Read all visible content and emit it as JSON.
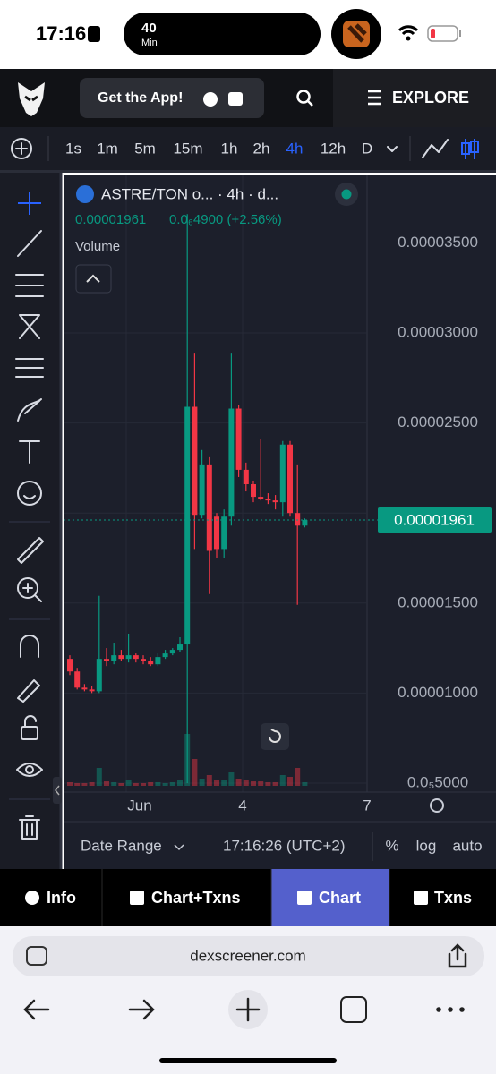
{
  "status_bar": {
    "time": "17:16",
    "timer_value": "40",
    "timer_unit": "Min"
  },
  "header": {
    "app_button": "Get the App!",
    "explore": "EXPLORE"
  },
  "timeframes": {
    "items": [
      "1s",
      "1m",
      "5m",
      "15m",
      "1h",
      "2h",
      "4h",
      "12h",
      "D"
    ],
    "active_index": 6
  },
  "chart": {
    "type": "candlestick",
    "title": "ASTRE/TON o... · 4h · d...",
    "last_close_label": "0.00001961",
    "change_label": "0.0₆4900 (+2.56%)",
    "indicator": "Volume",
    "up_color": "#089981",
    "down_color": "#f23645",
    "open": [
      1.19e-05,
      1.12e-05,
      1.03e-05,
      1.02e-05,
      1.01e-05,
      1.19e-05,
      1.18e-05,
      1.21e-05,
      1.19e-05,
      1.21e-05,
      1.19e-05,
      1.18e-05,
      1.16e-05,
      1.2e-05,
      1.22e-05,
      1.24e-05,
      1.27e-05,
      2.59e-05,
      1.99e-05,
      2.27e-05,
      1.98e-05,
      1.8e-05,
      1.98e-05,
      2.58e-05,
      2.24e-05,
      2.16e-05,
      2.09e-05,
      2.08e-05,
      2.07e-05,
      2.06e-05,
      2.38e-05,
      2e-05,
      1.93e-05
    ],
    "high": [
      1.21e-05,
      1.14e-05,
      1.05e-05,
      1.04e-05,
      1.54e-05,
      1.25e-05,
      1.28e-05,
      1.24e-05,
      1.33e-05,
      1.22e-05,
      1.21e-05,
      1.2e-05,
      1.22e-05,
      1.24e-05,
      1.25e-05,
      1.31e-05,
      3.66e-05,
      2.89e-05,
      2.35e-05,
      2.31e-05,
      2e-05,
      2.02e-05,
      2.89e-05,
      2.6e-05,
      2.28e-05,
      2.18e-05,
      2.41e-05,
      2.11e-05,
      2.1e-05,
      2.4e-05,
      2.4e-05,
      2.27e-05,
      1.97e-05
    ],
    "low": [
      1.1e-05,
      1.02e-05,
      1.01e-05,
      1e-05,
      1e-05,
      1.15e-05,
      1.16e-05,
      1.18e-05,
      1.17e-05,
      1.17e-05,
      1.16e-05,
      1.15e-05,
      1.15e-05,
      1.19e-05,
      1.21e-05,
      1.23e-05,
      5e-06,
      1.8e-05,
      1.97e-05,
      1.55e-05,
      1.75e-05,
      1.75e-05,
      1.93e-05,
      2.2e-05,
      2.12e-05,
      2.06e-05,
      2.07e-05,
      2.05e-05,
      2.02e-05,
      1.98e-05,
      1.98e-05,
      1.49e-05,
      1.92e-05
    ],
    "close": [
      1.12e-05,
      1.03e-05,
      1.02e-05,
      1.01e-05,
      1.19e-05,
      1.18e-05,
      1.21e-05,
      1.19e-05,
      1.21e-05,
      1.19e-05,
      1.18e-05,
      1.16e-05,
      1.2e-05,
      1.22e-05,
      1.24e-05,
      1.27e-05,
      2.59e-05,
      1.99e-05,
      2.27e-05,
      1.79e-05,
      1.8e-05,
      1.98e-05,
      2.58e-05,
      2.24e-05,
      2.16e-05,
      2.09e-05,
      2.08e-05,
      2.07e-05,
      2.06e-05,
      2.38e-05,
      2e-05,
      1.93e-05,
      1.961e-05
    ],
    "volume": [
      4,
      3,
      3,
      4,
      20,
      5,
      4,
      3,
      6,
      3,
      3,
      4,
      4,
      3,
      4,
      6,
      58,
      30,
      8,
      12,
      6,
      6,
      15,
      8,
      6,
      5,
      5,
      4,
      4,
      12,
      10,
      20,
      4
    ],
    "ylim": [
      4.5e-06,
      3.88e-05
    ],
    "yticks": [
      {
        "value": 3.5e-05,
        "label": "0.00003500"
      },
      {
        "value": 3e-05,
        "label": "0.00003000"
      },
      {
        "value": 2.5e-05,
        "label": "0.00002500"
      },
      {
        "value": 2e-05,
        "label": "0.00002000"
      },
      {
        "value": 1.5e-05,
        "label": "0.00001500"
      },
      {
        "value": 1e-05,
        "label": "0.00001000"
      },
      {
        "value": 5e-06,
        "label": "0.0₅5000"
      }
    ],
    "last_price": {
      "value": 1.961e-05,
      "label": "0.00001961"
    },
    "x_labels": [
      "Jun",
      "4",
      "7"
    ]
  },
  "chart_footer": {
    "date_range": "Date Range",
    "time": "17:16:26 (UTC+2)",
    "options": [
      "%",
      "log",
      "auto"
    ]
  },
  "tabs": {
    "items": [
      "Info",
      "Chart+Txns",
      "Chart",
      "Txns"
    ],
    "active_index": 2
  },
  "browser": {
    "url": "dexscreener.com"
  }
}
